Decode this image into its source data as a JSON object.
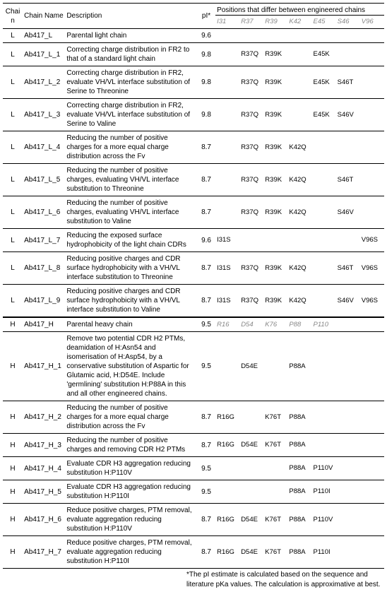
{
  "columns": {
    "chain": "Chain",
    "chain_name": "Chain Name",
    "description": "Description",
    "pi": "pI*",
    "positions_header": "Positions that differ between engineered chains"
  },
  "light_positions": [
    "I31",
    "R37",
    "R39",
    "K42",
    "E45",
    "S46",
    "V96"
  ],
  "heavy_positions": [
    "R16",
    "D54",
    "K76",
    "P88",
    "P110"
  ],
  "rows_light": [
    {
      "chain": "L",
      "name": "Ab417_L",
      "desc": "Parental light chain",
      "pi": "9.6",
      "pos": [
        "",
        "",
        "",
        "",
        "",
        "",
        ""
      ]
    },
    {
      "chain": "L",
      "name": "Ab417_L_1",
      "desc": "Correcting charge distribution in FR2 to that of a standard light chain",
      "pi": "9.8",
      "pos": [
        "",
        "R37Q",
        "R39K",
        "",
        "E45K",
        "",
        ""
      ]
    },
    {
      "chain": "L",
      "name": "Ab417_L_2",
      "desc": "Correcting charge distribution in FR2, evaluate VH/VL interface substitution of Serine to Threonine",
      "pi": "9.8",
      "pos": [
        "",
        "R37Q",
        "R39K",
        "",
        "E45K",
        "S46T",
        ""
      ]
    },
    {
      "chain": "L",
      "name": "Ab417_L_3",
      "desc": "Correcting charge distribution in FR2, evaluate VH/VL interface substitution of Serine to Valine",
      "pi": "9.8",
      "pos": [
        "",
        "R37Q",
        "R39K",
        "",
        "E45K",
        "S46V",
        ""
      ]
    },
    {
      "chain": "L",
      "name": "Ab417_L_4",
      "desc": "Reducing the number of positive charges for a more equal charge distribution across the Fv",
      "pi": "8.7",
      "pos": [
        "",
        "R37Q",
        "R39K",
        "K42Q",
        "",
        "",
        ""
      ]
    },
    {
      "chain": "L",
      "name": "Ab417_L_5",
      "desc": "Reducing the number of positive charges, evaluating VH/VL interface substitution to Threonine",
      "pi": "8.7",
      "pos": [
        "",
        "R37Q",
        "R39K",
        "K42Q",
        "",
        "S46T",
        ""
      ]
    },
    {
      "chain": "L",
      "name": "Ab417_L_6",
      "desc": "Reducing the number of positive charges, evaluating VH/VL interface substitution to Valine",
      "pi": "8.7",
      "pos": [
        "",
        "R37Q",
        "R39K",
        "K42Q",
        "",
        "S46V",
        ""
      ]
    },
    {
      "chain": "L",
      "name": "Ab417_L_7",
      "desc": "Reducing the exposed surface hydrophobicity of the light chain CDRs",
      "pi": "9.6",
      "pos": [
        "I31S",
        "",
        "",
        "",
        "",
        "",
        "V96S"
      ]
    },
    {
      "chain": "L",
      "name": "Ab417_L_8",
      "desc": "Reducing positive charges and CDR surface hydrophobicity with a VH/VL interface substitution to Threonine",
      "pi": "8.7",
      "pos": [
        "I31S",
        "R37Q",
        "R39K",
        "K42Q",
        "",
        "S46T",
        "V96S"
      ]
    },
    {
      "chain": "L",
      "name": "Ab417_L_9",
      "desc": "Reducing positive charges and CDR surface hydrophobicity with a VH/VL interface substitution to Valine",
      "pi": "8.7",
      "pos": [
        "I31S",
        "R37Q",
        "R39K",
        "K42Q",
        "",
        "S46V",
        "V96S"
      ]
    }
  ],
  "rows_heavy": [
    {
      "chain": "H",
      "name": "Ab417_H",
      "desc": "Parental heavy chain",
      "pi": "9.5",
      "pos": [
        "",
        "",
        "",
        "",
        ""
      ]
    },
    {
      "chain": "H",
      "name": "Ab417_H_1",
      "desc": "Remove two potential CDR H2 PTMs, deamidation of H:Asn54 and isomerisation of H:Asp54, by a conservative substitution of Aspartic for Glutamic acid, H:D54E. Include 'germlining' substitution H:P88A in this and all other engineered chains.",
      "pi": "9.5",
      "pos": [
        "",
        "D54E",
        "",
        "P88A",
        ""
      ]
    },
    {
      "chain": "H",
      "name": "Ab417_H_2",
      "desc": "Reducing the number of positive charges for a more equal charge distribution across the Fv",
      "pi": "8.7",
      "pos": [
        "R16G",
        "",
        "K76T",
        "P88A",
        ""
      ]
    },
    {
      "chain": "H",
      "name": "Ab417_H_3",
      "desc": "Reducing the number of positive charges and removing CDR H2 PTMs",
      "pi": "8.7",
      "pos": [
        "R16G",
        "D54E",
        "K76T",
        "P88A",
        ""
      ]
    },
    {
      "chain": "H",
      "name": "Ab417_H_4",
      "desc": "Evaluate CDR H3 aggregation reducing substitution H:P110V",
      "pi": "9.5",
      "pos": [
        "",
        "",
        "",
        "P88A",
        "P110V"
      ]
    },
    {
      "chain": "H",
      "name": "Ab417_H_5",
      "desc": "Evaluate CDR H3 aggregation reducing substitution H:P110I",
      "pi": "9.5",
      "pos": [
        "",
        "",
        "",
        "P88A",
        "P110I"
      ]
    },
    {
      "chain": "H",
      "name": "Ab417_H_6",
      "desc": "Reduce positive charges, PTM removal, evaluate aggregation reducing substitution H:P110V",
      "pi": "8.7",
      "pos": [
        "R16G",
        "D54E",
        "K76T",
        "P88A",
        "P110V"
      ]
    },
    {
      "chain": "H",
      "name": "Ab417_H_7",
      "desc": "Reduce positive charges, PTM removal, evaluate aggregation reducing substitution H:P110I",
      "pi": "8.7",
      "pos": [
        "R16G",
        "D54E",
        "K76T",
        "P88A",
        "P110I"
      ]
    }
  ],
  "footnote": {
    "line1": "*The pI estimate is calculated based on the sequence and",
    "line2": "literature pKa values. The calculation is approximative at best."
  }
}
